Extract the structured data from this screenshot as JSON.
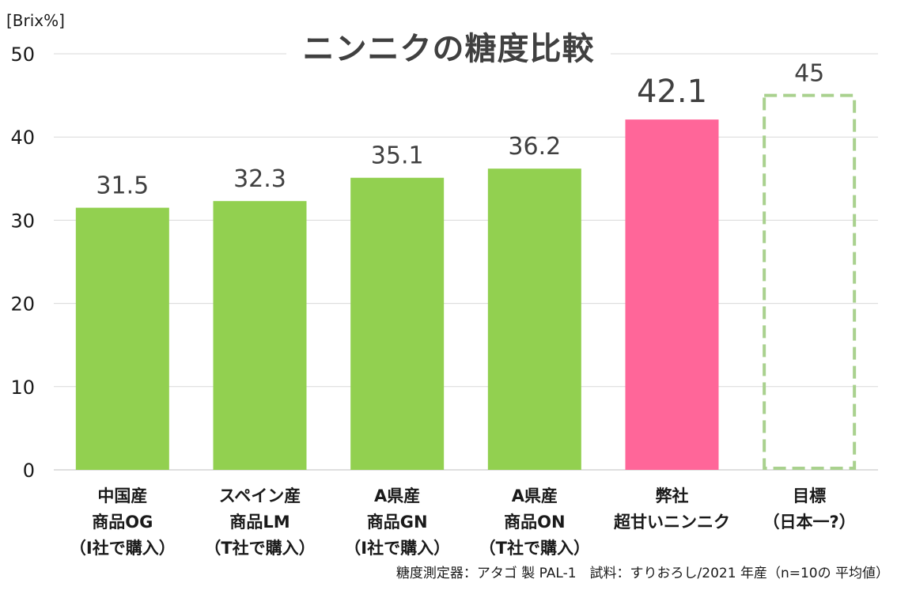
{
  "chart_data": {
    "type": "bar",
    "title": "ニンニクの糖度比較",
    "ylabel": "[Brix%]",
    "ylim": [
      0,
      50
    ],
    "yticks": [
      0,
      10,
      20,
      30,
      40,
      50
    ],
    "grid": true,
    "categories": [
      [
        "中国産",
        "商品OG",
        "（I社で購入）"
      ],
      [
        "スペイン産",
        "商品LM",
        "（T社で購入）"
      ],
      [
        "A県産",
        "商品GN",
        "（I社で購入）"
      ],
      [
        "A県産",
        "商品ON",
        "（T社で購入）"
      ],
      [
        "弊社",
        "超甘いニンニク"
      ],
      [
        "目標",
        "（日本一?）"
      ]
    ],
    "values": [
      31.5,
      32.3,
      35.1,
      36.2,
      42.1,
      45
    ],
    "value_labels": [
      "31.5",
      "32.3",
      "35.1",
      "36.2",
      "42.1",
      "45"
    ],
    "bar_styles": [
      "solid",
      "solid",
      "solid",
      "solid",
      "solid",
      "dashed-outline"
    ],
    "bar_colors": [
      "#92d050",
      "#92d050",
      "#92d050",
      "#92d050",
      "#ff6699",
      "#a9d18e"
    ],
    "footnote": "糖度測定器：アタゴ 製 PAL-1　試料：すりおろし/2021 年産（n=10の 平均値）"
  }
}
